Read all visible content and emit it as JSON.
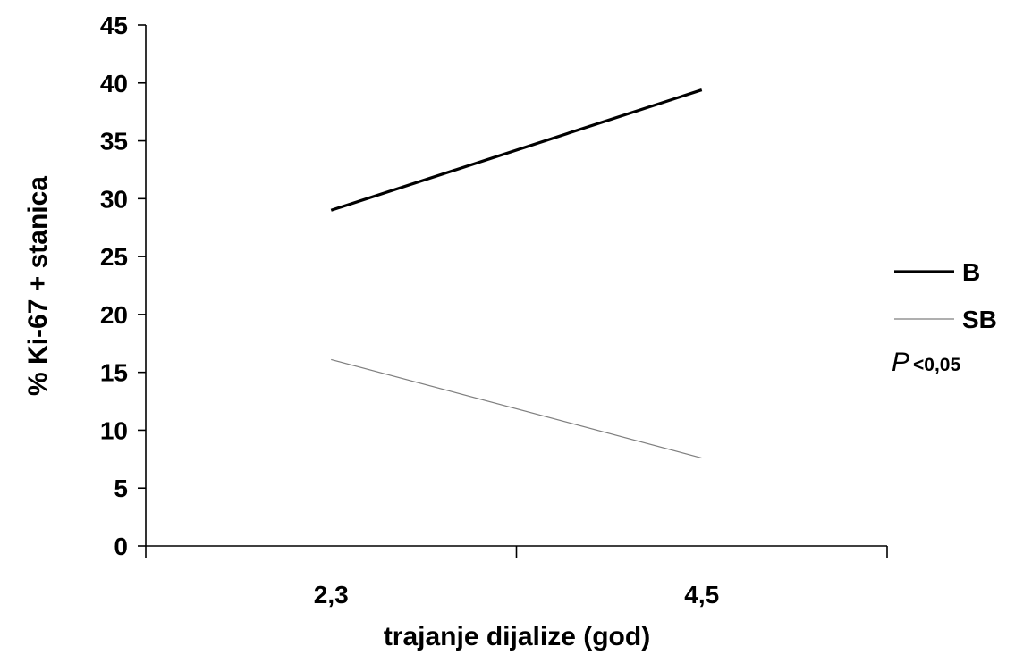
{
  "chart_data": {
    "type": "line",
    "categories": [
      "2,3",
      "4,5"
    ],
    "series": [
      {
        "name": "B",
        "values": [
          29,
          39.4
        ],
        "color": "#000000",
        "line_weight": "thick"
      },
      {
        "name": "SB",
        "values": [
          16.1,
          7.6
        ],
        "color": "#7f7f7f",
        "line_weight": "thin"
      }
    ],
    "xlabel": "trajanje dijalize (god)",
    "ylabel": "% Ki-67 + stanica",
    "ylim": [
      0,
      45
    ],
    "yticks": [
      "0",
      "5",
      "10",
      "15",
      "20",
      "25",
      "30",
      "35",
      "40",
      "45"
    ],
    "grid": false,
    "legend_position": "right",
    "annotation": {
      "prefix": "P",
      "value": "<0,05"
    }
  }
}
